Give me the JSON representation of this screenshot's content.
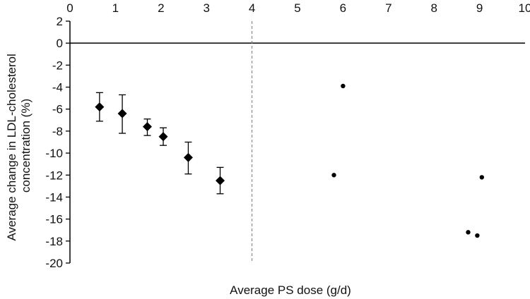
{
  "chart_data": {
    "type": "scatter",
    "title": "",
    "xlabel": "Average PS dose (g/d)",
    "ylabel_lines": [
      "Average change in LDL-cholesterol",
      "concentration (%)"
    ],
    "xlim": [
      0,
      10
    ],
    "ylim": [
      -20,
      2
    ],
    "x_ticks": [
      "0",
      "1",
      "2",
      "3",
      "4",
      "5",
      "6",
      "7",
      "8",
      "9",
      "10"
    ],
    "y_ticks": [
      "2",
      "0",
      "-2",
      "-4",
      "-6",
      "-8",
      "-10",
      "-12",
      "-14",
      "-16",
      "-18",
      "-20"
    ],
    "x_axis_position": "top",
    "grid": false,
    "reference_line": {
      "x": 4,
      "style": "dashed"
    },
    "series": [
      {
        "marker": "diamond",
        "color": "#000000",
        "points": [
          {
            "x": 0.65,
            "y": -5.8,
            "err_low": -7.1,
            "err_high": -4.5
          },
          {
            "x": 1.15,
            "y": -6.4,
            "err_low": -8.2,
            "err_high": -4.7
          },
          {
            "x": 1.7,
            "y": -7.6,
            "err_low": -8.4,
            "err_high": -6.9
          },
          {
            "x": 2.05,
            "y": -8.5,
            "err_low": -9.3,
            "err_high": -7.7
          },
          {
            "x": 2.6,
            "y": -10.4,
            "err_low": -11.9,
            "err_high": -9.0
          },
          {
            "x": 3.3,
            "y": -12.5,
            "err_low": -13.7,
            "err_high": -11.3
          }
        ]
      },
      {
        "marker": "dot",
        "color": "#000000",
        "points": [
          {
            "x": 5.8,
            "y": -12.0
          },
          {
            "x": 6.0,
            "y": -3.9
          },
          {
            "x": 8.75,
            "y": -17.2
          },
          {
            "x": 8.95,
            "y": -17.5
          },
          {
            "x": 9.05,
            "y": -12.2
          }
        ]
      }
    ]
  }
}
